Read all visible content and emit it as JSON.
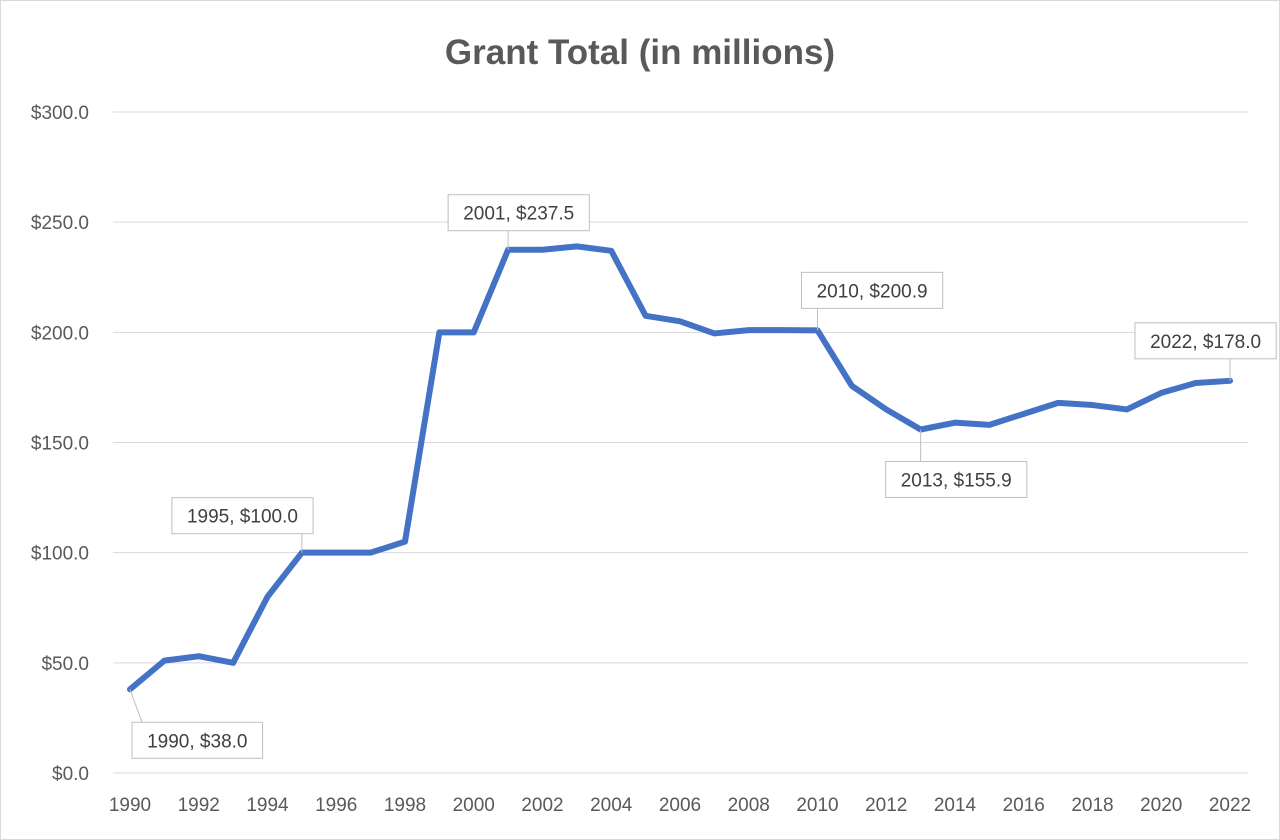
{
  "chart_data": {
    "type": "line",
    "title": "Grant Total (in millions)",
    "xlabel": "",
    "ylabel": "",
    "ylim": [
      0,
      300
    ],
    "xlim": [
      1990,
      2022
    ],
    "grid": true,
    "legend": "none",
    "y_ticks": [
      "$0.0",
      "$50.0",
      "$100.0",
      "$150.0",
      "$200.0",
      "$250.0",
      "$300.0"
    ],
    "x_ticks": [
      "1990",
      "1992",
      "1994",
      "1996",
      "1998",
      "2000",
      "2002",
      "2004",
      "2006",
      "2008",
      "2010",
      "2012",
      "2014",
      "2016",
      "2018",
      "2020",
      "2022"
    ],
    "x": [
      1990,
      1991,
      1992,
      1993,
      1994,
      1995,
      1996,
      1997,
      1998,
      1999,
      2000,
      2001,
      2002,
      2003,
      2004,
      2005,
      2006,
      2007,
      2008,
      2009,
      2010,
      2011,
      2012,
      2013,
      2014,
      2015,
      2016,
      2017,
      2018,
      2019,
      2020,
      2021,
      2022
    ],
    "values": [
      38.0,
      51,
      53,
      50,
      80,
      100.0,
      100,
      100,
      105,
      200,
      200,
      237.5,
      237.5,
      239,
      237,
      207.5,
      205,
      199.5,
      201,
      201,
      200.9,
      175.7,
      165,
      155.9,
      159,
      158,
      163,
      168,
      167,
      165,
      172.5,
      177,
      178.0
    ],
    "line_color": "#4472C4",
    "annotations": [
      {
        "x": 1990,
        "text": "1990, $38.0"
      },
      {
        "x": 1995,
        "text": "1995, $100.0"
      },
      {
        "x": 2001,
        "text": "2001, $237.5"
      },
      {
        "x": 2010,
        "text": "2010, $200.9"
      },
      {
        "x": 2013,
        "text": "2013, $155.9"
      },
      {
        "x": 2022,
        "text": "2022, $178.0"
      }
    ]
  }
}
